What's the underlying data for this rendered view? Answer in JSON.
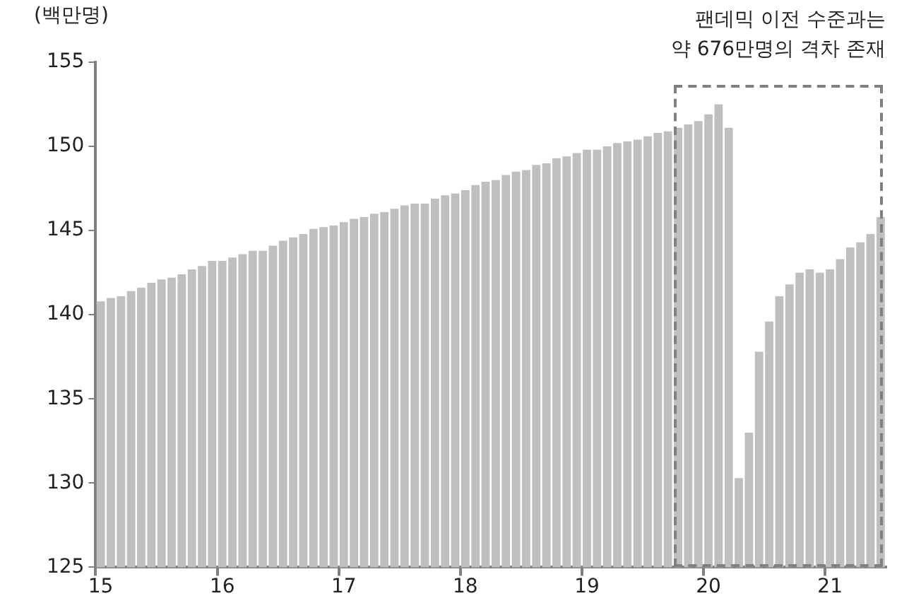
{
  "chart_data": {
    "type": "bar",
    "ylabel": "(백만명)",
    "annotations": [
      "팬데믹 이전 수준과는\n약 676만명의 격차 존재"
    ],
    "categories": [
      "15",
      null,
      null,
      null,
      null,
      null,
      null,
      null,
      null,
      null,
      null,
      null,
      "16",
      null,
      null,
      null,
      null,
      null,
      null,
      null,
      null,
      null,
      null,
      null,
      "17",
      null,
      null,
      null,
      null,
      null,
      null,
      null,
      null,
      null,
      null,
      null,
      "18",
      null,
      null,
      null,
      null,
      null,
      null,
      null,
      null,
      null,
      null,
      null,
      "19",
      null,
      null,
      null,
      null,
      null,
      null,
      null,
      null,
      null,
      null,
      null,
      "20",
      null,
      null,
      null,
      null,
      null,
      null,
      null,
      null,
      null,
      null,
      null,
      "21",
      null,
      null,
      null,
      null,
      null
    ],
    "values": [
      140.8,
      141.0,
      141.1,
      141.4,
      141.6,
      141.9,
      142.1,
      142.2,
      142.4,
      142.7,
      142.9,
      143.2,
      143.2,
      143.4,
      143.6,
      143.8,
      143.8,
      144.1,
      144.4,
      144.6,
      144.8,
      145.1,
      145.2,
      145.3,
      145.5,
      145.7,
      145.8,
      146.0,
      146.1,
      146.3,
      146.5,
      146.6,
      146.6,
      146.9,
      147.1,
      147.2,
      147.4,
      147.7,
      147.9,
      148.0,
      148.3,
      148.5,
      148.6,
      148.9,
      149.0,
      149.3,
      149.4,
      149.6,
      149.8,
      149.8,
      150.0,
      150.2,
      150.3,
      150.4,
      150.6,
      150.8,
      150.9,
      151.1,
      151.3,
      151.5,
      151.9,
      152.5,
      151.1,
      130.3,
      133.0,
      137.8,
      139.6,
      141.1,
      141.8,
      142.5,
      142.7,
      142.5,
      142.7,
      143.3,
      144.0,
      144.3,
      144.8,
      145.8
    ],
    "color": "#bfbfbf",
    "ylim": [
      125,
      155
    ],
    "yticks": [
      125,
      130,
      135,
      140,
      145,
      150,
      155
    ],
    "grid": false
  }
}
